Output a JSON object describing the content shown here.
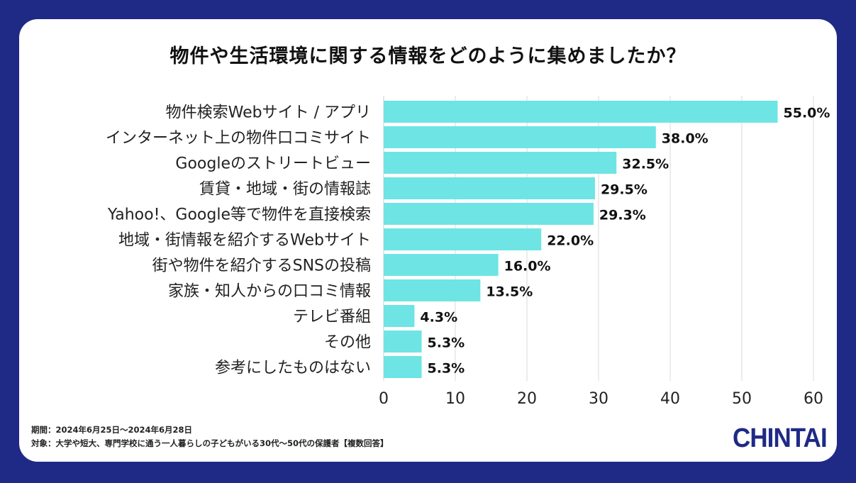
{
  "chart_data": {
    "type": "bar",
    "orientation": "horizontal",
    "title": "物件や生活環境に関する情報をどのように集めましたか？",
    "categories": [
      "物件検索Webサイト / アプリ",
      "インターネット上の物件口コミサイト",
      "Googleのストリートビュー",
      "賃貸・地域・街の情報誌",
      "Yahoo!、Google等で物件を直接検索",
      "地域・街情報を紹介するWebサイト",
      "街や物件を紹介するSNSの投稿",
      "家族・知人からの口コミ情報",
      "テレビ番組",
      "その他",
      "参考にしたものはない"
    ],
    "values": [
      55.0,
      38.0,
      32.5,
      29.5,
      29.3,
      22.0,
      16.0,
      13.5,
      4.3,
      5.3,
      5.3
    ],
    "value_labels": [
      "55.0%",
      "38.0%",
      "32.5%",
      "29.5%",
      "29.3%",
      "22.0%",
      "16.0%",
      "13.5%",
      "4.3%",
      "5.3%",
      "5.3%"
    ],
    "xlim": [
      0,
      60
    ],
    "xticks": [
      0,
      10,
      20,
      30,
      40,
      50,
      60
    ],
    "grid": true,
    "bar_color": "#6ee4e4"
  },
  "footnotes": {
    "period": "期間：2024年6月25日～2024年6月28日",
    "target": "対象：大学や短大、専門学校に通う一人暮らしの子どもがいる30代～50代の保護者【複数回答】"
  },
  "logo": "CHINTAI",
  "colors": {
    "background": "#1f2a86",
    "bar": "#6ee4e4",
    "grid": "#d9d9d9"
  }
}
